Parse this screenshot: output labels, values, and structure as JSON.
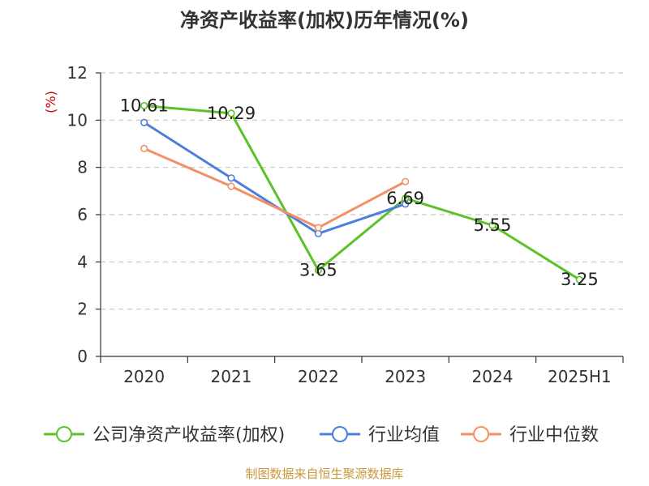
{
  "chart_data": {
    "type": "line",
    "title": "净资产收益率(加权)历年情况(%)",
    "ylabel": "(%)",
    "categories": [
      "2020",
      "2021",
      "2022",
      "2023",
      "2024",
      "2025H1"
    ],
    "ylim": [
      0,
      12
    ],
    "yticks": [
      0,
      2,
      4,
      6,
      8,
      10,
      12
    ],
    "grid": true,
    "legend_position": "bottom",
    "series": [
      {
        "name": "公司净资产收益率(加权)",
        "color": "#5cc22a",
        "values": [
          10.61,
          10.29,
          3.65,
          6.69,
          5.55,
          3.25
        ],
        "labels": [
          "10.61",
          "10.29",
          "3.65",
          "6.69",
          "5.55",
          "3.25"
        ]
      },
      {
        "name": "行业均值",
        "color": "#4e7fd8",
        "values": [
          9.9,
          7.55,
          5.2,
          6.45,
          null,
          null
        ]
      },
      {
        "name": "行业中位数",
        "color": "#f39166",
        "values": [
          8.8,
          7.2,
          5.45,
          7.4,
          null,
          null
        ]
      }
    ],
    "source": "制图数据来自恒生聚源数据库"
  }
}
